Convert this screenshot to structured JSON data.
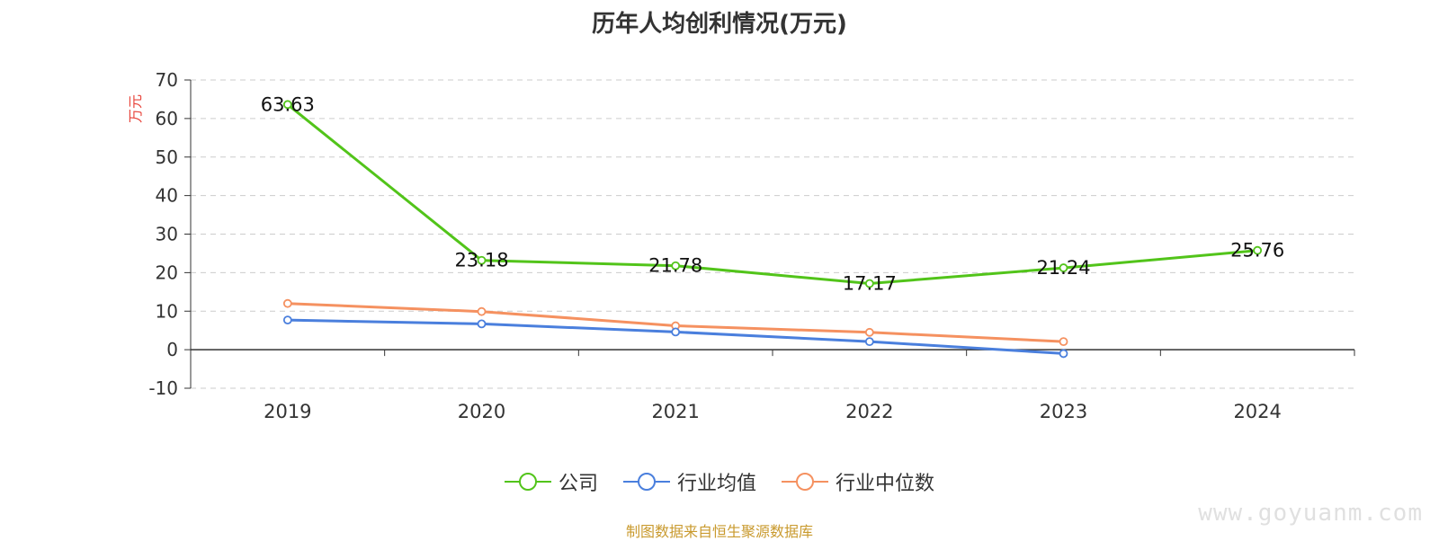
{
  "chart_data": {
    "type": "line",
    "title": "历年人均创利情况(万元)",
    "ylabel": "万元",
    "xlabel": "",
    "categories": [
      "2019",
      "2020",
      "2021",
      "2022",
      "2023",
      "2024"
    ],
    "ylim": [
      -10,
      70
    ],
    "yticks": [
      -10,
      0,
      10,
      20,
      30,
      40,
      50,
      60,
      70
    ],
    "grid": true,
    "legend_position": "bottom",
    "series": [
      {
        "name": "公司",
        "color": "#52c41a",
        "values": [
          63.63,
          23.18,
          21.78,
          17.17,
          21.24,
          25.76
        ],
        "labels": [
          "63.63",
          "23.18",
          "21.78",
          "17.17",
          "21.24",
          "25.76"
        ]
      },
      {
        "name": "行业均值",
        "color": "#4a7fdd",
        "values": [
          7.7,
          6.7,
          4.6,
          2.1,
          -1.0,
          null
        ]
      },
      {
        "name": "行业中位数",
        "color": "#f59160",
        "values": [
          12.0,
          9.9,
          6.2,
          4.5,
          2.1,
          null
        ]
      }
    ]
  },
  "footer": {
    "source": "制图数据来自恒生聚源数据库",
    "watermark": "www.goyuanm.com"
  }
}
